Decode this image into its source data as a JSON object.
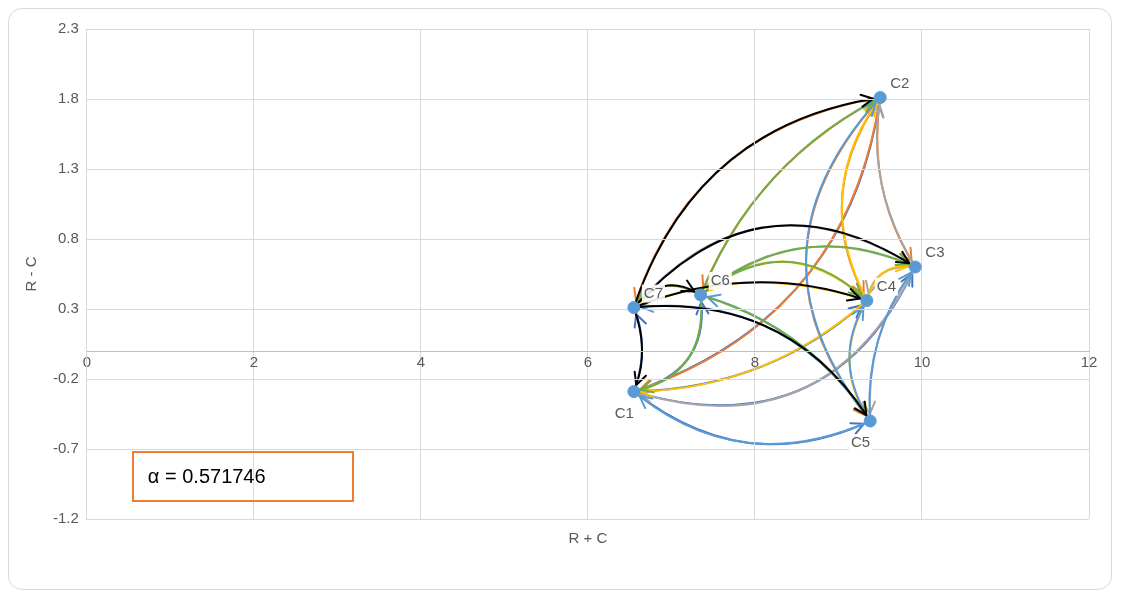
{
  "chart_data": {
    "type": "scatter",
    "xlabel": "R + C",
    "ylabel": "R - C",
    "series": [
      {
        "name": "C1",
        "color": "#5b9bd5",
        "x": [
          6.55
        ],
        "values": [
          -0.29
        ]
      },
      {
        "name": "C2",
        "color": "#5b9bd5",
        "x": [
          9.5
        ],
        "values": [
          1.81
        ]
      },
      {
        "name": "C3",
        "color": "#5b9bd5",
        "x": [
          9.92
        ],
        "values": [
          0.6
        ]
      },
      {
        "name": "C4",
        "color": "#5b9bd5",
        "x": [
          9.34
        ],
        "values": [
          0.36
        ]
      },
      {
        "name": "C5",
        "color": "#5b9bd5",
        "x": [
          9.38
        ],
        "values": [
          -0.5
        ]
      },
      {
        "name": "C6",
        "color": "#5b9bd5",
        "x": [
          7.35
        ],
        "values": [
          0.4
        ]
      },
      {
        "name": "C7",
        "color": "#5b9bd5",
        "x": [
          6.55
        ],
        "values": [
          0.31
        ]
      }
    ],
    "xlim": [
      0,
      12
    ],
    "xticks": [
      0,
      2,
      4,
      6,
      8,
      10,
      12
    ],
    "ylim": [
      -1.2,
      2.3
    ],
    "yticks": [
      -1.2,
      -0.7,
      -0.2,
      0.3,
      0.8,
      1.3,
      1.8,
      2.3
    ],
    "grid": true,
    "legend": false,
    "marker": "circle",
    "annotations": [
      "α = 0.571746"
    ]
  }
}
